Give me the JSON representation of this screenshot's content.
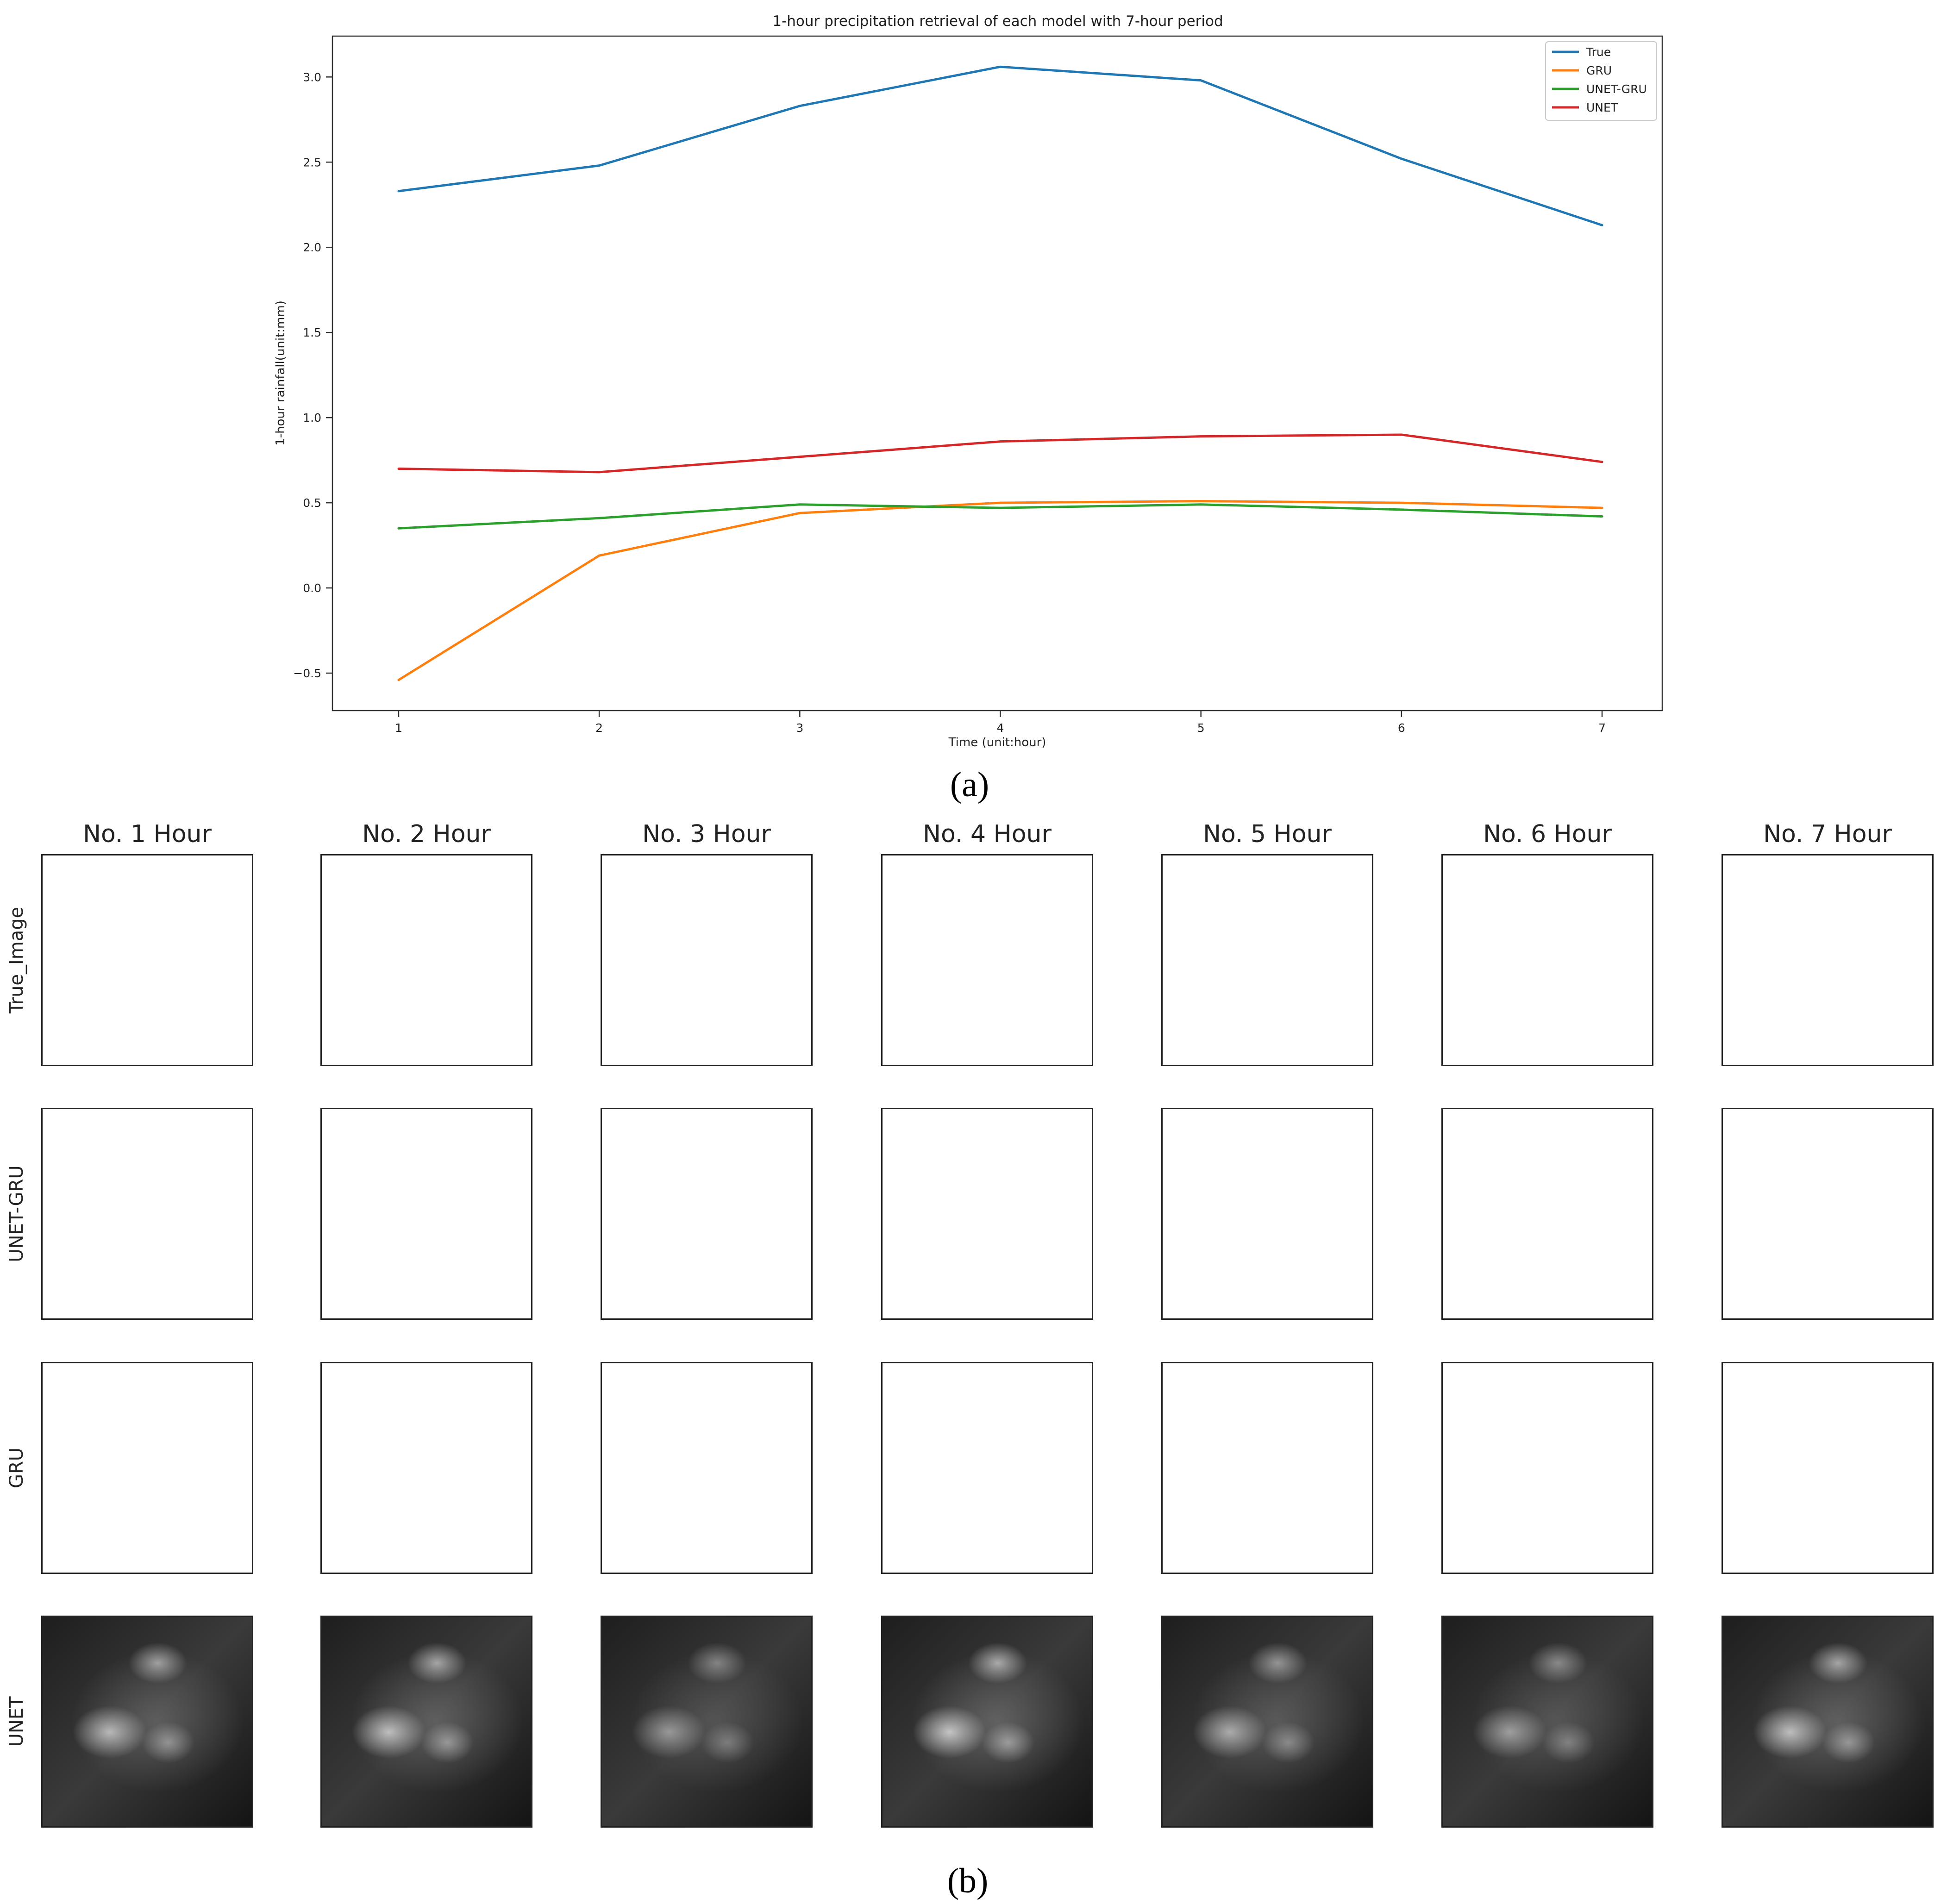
{
  "chart_data": {
    "type": "line",
    "title": "1-hour precipitation retrieval of each model with 7-hour period",
    "xlabel": "Time (unit:hour)",
    "ylabel": "1-hour rainfall(unit:mm)",
    "x": [
      1,
      2,
      3,
      4,
      5,
      6,
      7
    ],
    "xticks": [
      "1",
      "2",
      "3",
      "4",
      "5",
      "6",
      "7"
    ],
    "yticks": [
      "−0.5",
      "0.0",
      "0.5",
      "1.0",
      "1.5",
      "2.0",
      "2.5",
      "3.0"
    ],
    "ytick_values": [
      -0.5,
      0,
      0.5,
      1.0,
      1.5,
      2.0,
      2.5,
      3.0
    ],
    "xlim": [
      0.67,
      7.3
    ],
    "ylim": [
      -0.72,
      3.24
    ],
    "grid": false,
    "legend_position": "top-right",
    "series": [
      {
        "name": "True",
        "color": "#1f77b4",
        "values": [
          2.33,
          2.48,
          2.83,
          3.06,
          2.98,
          2.52,
          2.13
        ]
      },
      {
        "name": "GRU",
        "color": "#ff7f0e",
        "values": [
          -0.54,
          0.19,
          0.44,
          0.5,
          0.51,
          0.5,
          0.47
        ]
      },
      {
        "name": "UNET-GRU",
        "color": "#2ca02c",
        "values": [
          0.35,
          0.41,
          0.49,
          0.47,
          0.49,
          0.46,
          0.42
        ]
      },
      {
        "name": "UNET",
        "color": "#d62728",
        "values": [
          0.7,
          0.68,
          0.77,
          0.86,
          0.89,
          0.9,
          0.74
        ]
      }
    ]
  },
  "panel_a_label": "(a)",
  "panel_b_label": "(b)",
  "grid": {
    "columns": [
      "No. 1 Hour",
      "No. 2 Hour",
      "No. 3 Hour",
      "No. 4 Hour",
      "No. 5 Hour",
      "No. 6 Hour",
      "No. 7 Hour"
    ],
    "rows": [
      "True_Image",
      "UNET-GRU",
      "GRU",
      "UNET"
    ]
  }
}
